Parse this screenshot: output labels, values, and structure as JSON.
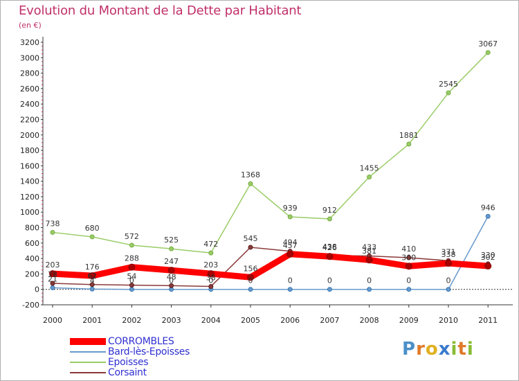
{
  "title": "Evolution du Montant de la Dette par Habitant",
  "subtitle": "(en €)",
  "chart_data": {
    "type": "line",
    "categories": [
      "2000",
      "2001",
      "2002",
      "2003",
      "2004",
      "2005",
      "2006",
      "2007",
      "2008",
      "2009",
      "2010",
      "2011"
    ],
    "ylim": [
      -200,
      3200
    ],
    "yticks": [
      "-200",
      "0",
      "200",
      "400",
      "600",
      "800",
      "1000",
      "1200",
      "1400",
      "1600",
      "1800",
      "2000",
      "2200",
      "2400",
      "2600",
      "2800",
      "3000",
      "3200"
    ],
    "grid": false,
    "legend_position": "bottom-left",
    "series": [
      {
        "name": "CORROMBLES",
        "color": "#ff0000",
        "values": [
          203,
          176,
          288,
          247,
          203,
          156,
          457,
          426,
          381,
          300,
          338,
          302
        ],
        "labels": [
          "203",
          "176",
          "288",
          "247",
          "203",
          "156",
          "457",
          "426",
          "381",
          "300",
          "338",
          "302"
        ]
      },
      {
        "name": "Bard-lès-Epoisses",
        "color": "#6699cc",
        "values": [
          21,
          4,
          0,
          0,
          0,
          0,
          0,
          0,
          0,
          0,
          0,
          946
        ],
        "labels": [
          "21",
          "4",
          "0",
          "0",
          "0",
          "0",
          "0",
          "0",
          "0",
          "0",
          "0",
          "946"
        ]
      },
      {
        "name": "Epoisses",
        "color": "#99cc66",
        "values": [
          738,
          680,
          572,
          525,
          472,
          1368,
          939,
          912,
          1455,
          1881,
          2545,
          3067
        ],
        "labels": [
          "738",
          "680",
          "572",
          "525",
          "472",
          "1368",
          "939",
          "912",
          "1455",
          "1881",
          "2545",
          "3067"
        ]
      },
      {
        "name": "Corsaint",
        "color": "#8b3a3a",
        "values": [
          78,
          62,
          54,
          48,
          38,
          545,
          494,
          438,
          433,
          410,
          371,
          330
        ],
        "labels": [
          "78",
          "62",
          "54",
          "48",
          "38",
          "545",
          "494",
          "438",
          "433",
          "410",
          "371",
          "330"
        ]
      }
    ]
  },
  "logo": {
    "letters": [
      "P",
      "r",
      "o",
      "x",
      "i",
      "t",
      "i"
    ],
    "colors": [
      "#4a90c8",
      "#e07a2a",
      "#e0b020",
      "#3a7acc",
      "#88bb33",
      "#e07a2a",
      "#88bb33"
    ]
  }
}
